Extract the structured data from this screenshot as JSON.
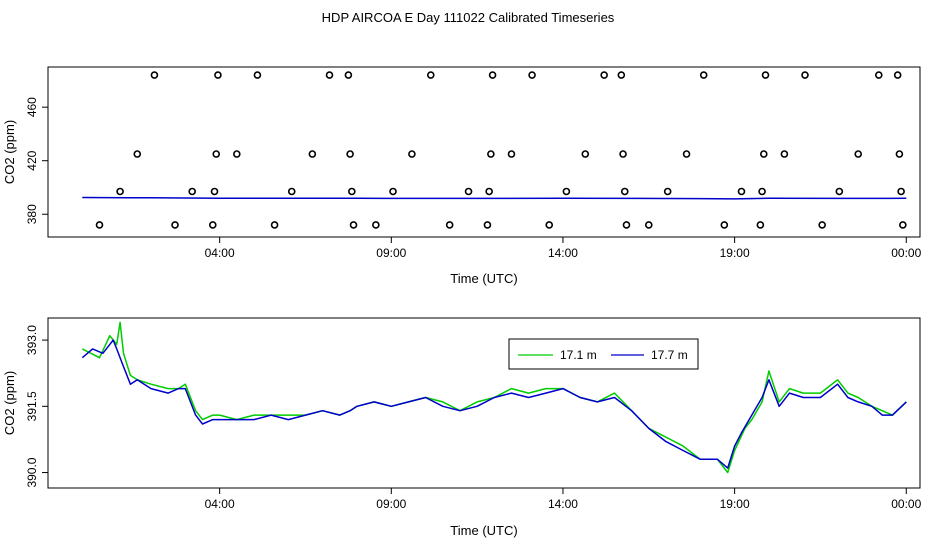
{
  "figure": {
    "title": "HDP AIRCOA E  Day 111022  Calibrated Timeseries"
  },
  "chart_data": [
    {
      "type": "scatter",
      "xlabel": "Time (UTC)",
      "ylabel": "CO2 (ppm)",
      "xlim": [
        -1.0,
        24.4
      ],
      "ylim": [
        363,
        490
      ],
      "x_ticks": [
        {
          "value": 4,
          "label": "04:00"
        },
        {
          "value": 9,
          "label": "09:00"
        },
        {
          "value": 14,
          "label": "14:00"
        },
        {
          "value": 19,
          "label": "19:00"
        },
        {
          "value": 24,
          "label": "00:00"
        }
      ],
      "y_ticks": [
        {
          "value": 380,
          "label": "380"
        },
        {
          "value": 420,
          "label": "420"
        },
        {
          "value": 460,
          "label": "460"
        }
      ],
      "grid": false,
      "points": [
        {
          "x": 0.5,
          "y": 372
        },
        {
          "x": 1.1,
          "y": 397
        },
        {
          "x": 1.6,
          "y": 425
        },
        {
          "x": 2.1,
          "y": 484
        },
        {
          "x": 2.7,
          "y": 372
        },
        {
          "x": 3.2,
          "y": 397
        },
        {
          "x": 3.8,
          "y": 372
        },
        {
          "x": 3.85,
          "y": 397
        },
        {
          "x": 3.9,
          "y": 425
        },
        {
          "x": 3.95,
          "y": 484
        },
        {
          "x": 4.5,
          "y": 425
        },
        {
          "x": 5.1,
          "y": 484
        },
        {
          "x": 5.6,
          "y": 372
        },
        {
          "x": 6.1,
          "y": 397
        },
        {
          "x": 6.7,
          "y": 425
        },
        {
          "x": 7.2,
          "y": 484
        },
        {
          "x": 7.75,
          "y": 484
        },
        {
          "x": 7.8,
          "y": 425
        },
        {
          "x": 7.85,
          "y": 397
        },
        {
          "x": 7.9,
          "y": 372
        },
        {
          "x": 8.55,
          "y": 372
        },
        {
          "x": 9.05,
          "y": 397
        },
        {
          "x": 9.6,
          "y": 425
        },
        {
          "x": 10.15,
          "y": 484
        },
        {
          "x": 10.7,
          "y": 372
        },
        {
          "x": 11.25,
          "y": 397
        },
        {
          "x": 11.8,
          "y": 372
        },
        {
          "x": 11.85,
          "y": 397
        },
        {
          "x": 11.9,
          "y": 425
        },
        {
          "x": 11.95,
          "y": 484
        },
        {
          "x": 12.5,
          "y": 425
        },
        {
          "x": 13.1,
          "y": 484
        },
        {
          "x": 13.6,
          "y": 372
        },
        {
          "x": 14.1,
          "y": 397
        },
        {
          "x": 14.65,
          "y": 425
        },
        {
          "x": 15.2,
          "y": 484
        },
        {
          "x": 15.7,
          "y": 484
        },
        {
          "x": 15.75,
          "y": 425
        },
        {
          "x": 15.8,
          "y": 397
        },
        {
          "x": 15.85,
          "y": 372
        },
        {
          "x": 16.5,
          "y": 372
        },
        {
          "x": 17.05,
          "y": 397
        },
        {
          "x": 17.6,
          "y": 425
        },
        {
          "x": 18.1,
          "y": 484
        },
        {
          "x": 18.7,
          "y": 372
        },
        {
          "x": 19.2,
          "y": 397
        },
        {
          "x": 19.75,
          "y": 372
        },
        {
          "x": 19.8,
          "y": 397
        },
        {
          "x": 19.85,
          "y": 425
        },
        {
          "x": 19.9,
          "y": 484
        },
        {
          "x": 20.45,
          "y": 425
        },
        {
          "x": 21.05,
          "y": 484
        },
        {
          "x": 21.55,
          "y": 372
        },
        {
          "x": 22.05,
          "y": 397
        },
        {
          "x": 22.6,
          "y": 425
        },
        {
          "x": 23.2,
          "y": 484
        },
        {
          "x": 23.75,
          "y": 484
        },
        {
          "x": 23.8,
          "y": 425
        },
        {
          "x": 23.85,
          "y": 397
        },
        {
          "x": 23.9,
          "y": 372
        }
      ],
      "series": [
        {
          "color": "#0000cc",
          "x": [
            0,
            2,
            4,
            6,
            8,
            10,
            12,
            14,
            16,
            18,
            19,
            20,
            22,
            24
          ],
          "y": [
            392.5,
            392.3,
            392.0,
            392.0,
            391.9,
            391.8,
            391.8,
            391.9,
            391.8,
            391.7,
            391.5,
            391.9,
            391.8,
            391.9
          ]
        }
      ]
    },
    {
      "type": "line",
      "xlabel": "Time (UTC)",
      "ylabel": "CO2 (ppm)",
      "xlim": [
        -1.0,
        24.4
      ],
      "ylim": [
        389.65,
        393.5
      ],
      "x_ticks": [
        {
          "value": 4,
          "label": "04:00"
        },
        {
          "value": 9,
          "label": "09:00"
        },
        {
          "value": 14,
          "label": "14:00"
        },
        {
          "value": 19,
          "label": "19:00"
        },
        {
          "value": 24,
          "label": "00:00"
        }
      ],
      "y_ticks": [
        {
          "value": 390.0,
          "label": "390.0"
        },
        {
          "value": 391.5,
          "label": "391.5"
        },
        {
          "value": 393.0,
          "label": "393.0"
        }
      ],
      "grid": false,
      "legend_position": "top-center",
      "series": [
        {
          "name": "17.1 m",
          "color": "#00cc00",
          "x": [
            0.0,
            0.5,
            0.8,
            1.0,
            1.1,
            1.2,
            1.4,
            1.6,
            2.0,
            2.5,
            2.8,
            3.0,
            3.3,
            3.5,
            3.8,
            4.0,
            4.5,
            5.0,
            5.5,
            6.0,
            6.5,
            7.0,
            7.5,
            7.8,
            8.0,
            8.5,
            9.0,
            9.5,
            10.0,
            10.5,
            11.0,
            11.5,
            12.0,
            12.5,
            13.0,
            13.5,
            14.0,
            14.5,
            15.0,
            15.5,
            16.0,
            16.5,
            17.0,
            17.5,
            18.0,
            18.5,
            18.8,
            19.0,
            19.3,
            19.5,
            19.8,
            20.0,
            20.3,
            20.6,
            21.0,
            21.5,
            22.0,
            22.3,
            22.6,
            23.0,
            23.3,
            23.6,
            24.0
          ],
          "y": [
            392.8,
            392.6,
            393.1,
            392.9,
            393.4,
            392.7,
            392.2,
            392.1,
            392.0,
            391.9,
            391.9,
            392.0,
            391.4,
            391.2,
            391.3,
            391.3,
            391.2,
            391.3,
            391.3,
            391.3,
            391.3,
            391.4,
            391.3,
            391.4,
            391.5,
            391.6,
            391.5,
            391.6,
            391.7,
            391.6,
            391.4,
            391.6,
            391.7,
            391.9,
            391.8,
            391.9,
            391.9,
            391.7,
            391.6,
            391.8,
            391.4,
            391.0,
            390.8,
            390.6,
            390.3,
            390.3,
            390.0,
            390.5,
            391.0,
            391.2,
            391.6,
            392.3,
            391.6,
            391.9,
            391.8,
            391.8,
            392.1,
            391.8,
            391.7,
            391.5,
            391.4,
            391.3,
            391.6
          ]
        },
        {
          "name": "17.7 m",
          "color": "#0000cc",
          "x": [
            0.0,
            0.3,
            0.6,
            0.9,
            1.0,
            1.2,
            1.4,
            1.6,
            2.0,
            2.5,
            2.8,
            3.0,
            3.3,
            3.5,
            3.8,
            4.0,
            4.5,
            5.0,
            5.5,
            6.0,
            6.5,
            7.0,
            7.5,
            7.8,
            8.0,
            8.5,
            9.0,
            9.5,
            10.0,
            10.5,
            11.0,
            11.5,
            12.0,
            12.5,
            13.0,
            13.5,
            14.0,
            14.5,
            15.0,
            15.5,
            16.0,
            16.5,
            17.0,
            17.5,
            18.0,
            18.5,
            18.8,
            19.0,
            19.2,
            19.5,
            19.8,
            20.0,
            20.3,
            20.6,
            21.0,
            21.5,
            22.0,
            22.3,
            22.6,
            23.0,
            23.3,
            23.6,
            24.0
          ],
          "y": [
            392.6,
            392.8,
            392.7,
            393.0,
            392.8,
            392.4,
            392.0,
            392.1,
            391.9,
            391.8,
            391.9,
            391.9,
            391.3,
            391.1,
            391.2,
            391.2,
            391.2,
            391.2,
            391.3,
            391.2,
            391.3,
            391.4,
            391.3,
            391.4,
            391.5,
            391.6,
            391.5,
            391.6,
            391.7,
            391.5,
            391.4,
            391.5,
            391.7,
            391.8,
            391.7,
            391.8,
            391.9,
            391.7,
            391.6,
            391.7,
            391.4,
            391.0,
            390.7,
            390.5,
            390.3,
            390.3,
            390.1,
            390.6,
            390.9,
            391.3,
            391.7,
            392.1,
            391.5,
            391.8,
            391.7,
            391.7,
            392.0,
            391.7,
            391.6,
            391.5,
            391.3,
            391.3,
            391.6
          ]
        }
      ]
    }
  ]
}
